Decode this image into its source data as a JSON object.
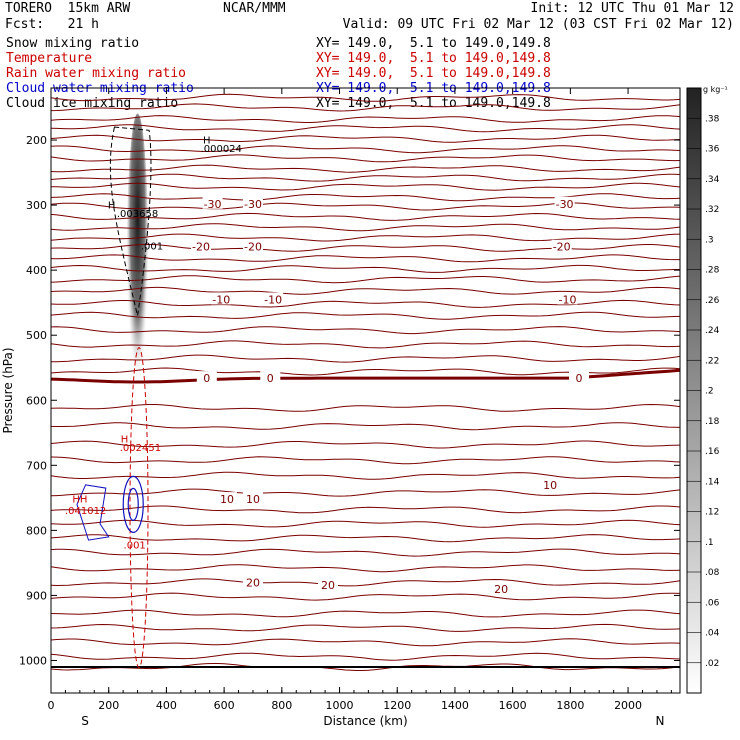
{
  "header": {
    "model": "TORERO  15km ARW",
    "org": "NCAR/MMM",
    "init": "Init: 12 UTC Thu 01 Mar 12",
    "fcst": "Fcst:   21 h",
    "valid": "Valid: 09 UTC Fri 02 Mar 12 (03 CST Fri 02 Mar 12)"
  },
  "fields": [
    {
      "name": "Snow mixing ratio",
      "color": "#000000",
      "xy": ""
    },
    {
      "name": "Temperature",
      "color": "#cc0000",
      "xy": "XY= 149.0,  5.1 to 149.0,149.8"
    },
    {
      "name": "Rain water mixing ratio",
      "color": "#cc0000",
      "xy": "XY= 149.0,  5.1 to 149.0,149.8"
    },
    {
      "name": "Cloud water mixing ratio",
      "color": "#0000cc",
      "xy": "XY= 149.0,  5.1 to 149.0,149.8"
    },
    {
      "name": "Cloud ice mixing ratio",
      "color": "#000000",
      "xy": "XY= 149.0,  5.1 to 149.0,149.8"
    }
  ],
  "first_xy": "XY= 149.0,  5.1 to 149.0,149.8",
  "chart_data": {
    "type": "cross-section contour",
    "xlabel": "Distance (km)",
    "ylabel": "Pressure (hPa)",
    "xlim": [
      0,
      2180
    ],
    "ylim": [
      1050,
      120
    ],
    "x_ticks": [
      0,
      200,
      400,
      600,
      800,
      1000,
      1200,
      1400,
      1600,
      1800,
      2000
    ],
    "y_ticks": [
      200,
      300,
      400,
      500,
      600,
      700,
      800,
      900,
      1000
    ],
    "left_end_label": "S",
    "right_end_label": "N",
    "colorbar": {
      "unit": "g kg⁻¹",
      "ticks": [
        ".02",
        ".04",
        ".06",
        ".08",
        ".1",
        ".12",
        ".14",
        ".16",
        ".18",
        ".2",
        ".22",
        ".24",
        ".26",
        ".28",
        ".3",
        ".32",
        ".34",
        ".36",
        ".38"
      ]
    },
    "temperature_isotherms_labeled": [
      {
        "value": "-30",
        "labels": [
          [
            560,
            298
          ],
          [
            700,
            298
          ],
          [
            1780,
            298
          ]
        ]
      },
      {
        "value": "-20",
        "labels": [
          [
            520,
            364
          ],
          [
            700,
            364
          ],
          [
            1770,
            364
          ]
        ]
      },
      {
        "value": "-10",
        "labels": [
          [
            590,
            445
          ],
          [
            770,
            445
          ],
          [
            1790,
            445
          ]
        ]
      },
      {
        "value": "0",
        "labels": [
          [
            540,
            566
          ],
          [
            760,
            566
          ],
          [
            1830,
            566
          ]
        ]
      },
      {
        "value": "10",
        "labels": [
          [
            610,
            752
          ],
          [
            700,
            752
          ],
          [
            1730,
            730
          ]
        ]
      },
      {
        "value": "20",
        "labels": [
          [
            700,
            880
          ],
          [
            960,
            884
          ],
          [
            1560,
            890
          ]
        ]
      }
    ],
    "annotations": [
      {
        "text": "H",
        "x": 540,
        "y": 205,
        "color": "#000000"
      },
      {
        "text": ".000024",
        "x": 590,
        "y": 218,
        "color": "#000000"
      },
      {
        "text": "H",
        "x": 210,
        "y": 305,
        "color": "#000000"
      },
      {
        "text": ".003658",
        "x": 300,
        "y": 318,
        "color": "#000000"
      },
      {
        "text": ".001",
        "x": 350,
        "y": 368,
        "color": "#000000"
      },
      {
        "text": "H",
        "x": 255,
        "y": 665,
        "color": "#cc0000"
      },
      {
        "text": ".002451",
        "x": 310,
        "y": 678,
        "color": "#cc0000"
      },
      {
        "text": "HH",
        "x": 100,
        "y": 757,
        "color": "#cc0000"
      },
      {
        "text": ".041012",
        "x": 120,
        "y": 775,
        "color": "#cc0000"
      },
      {
        "text": ".001",
        "x": 290,
        "y": 828,
        "color": "#cc0000"
      }
    ]
  }
}
